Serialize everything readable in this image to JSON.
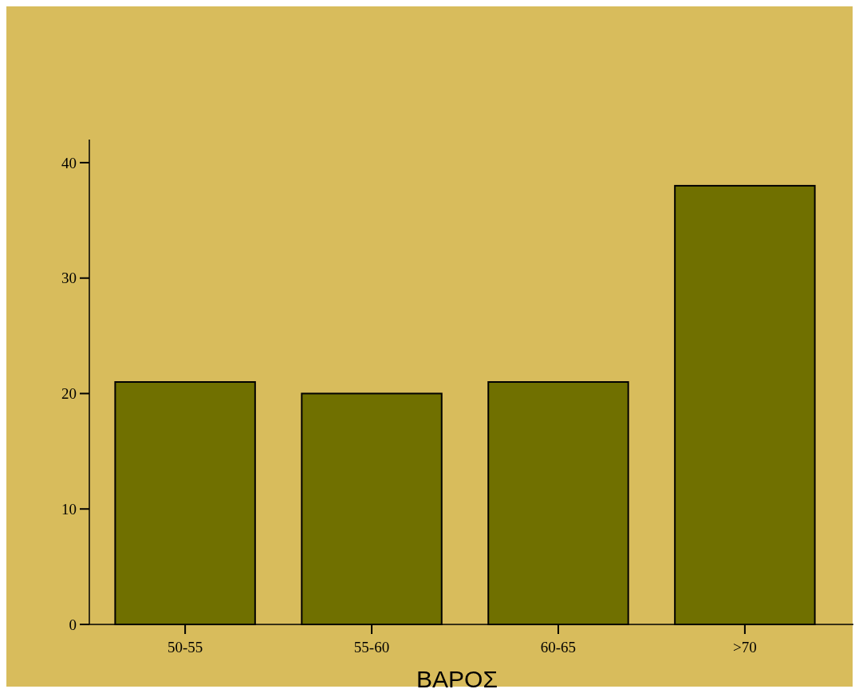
{
  "chart_data": {
    "type": "bar",
    "xlabel": "ΒΑΡΟΣ",
    "categories": [
      "50-55",
      "55-60",
      "60-65",
      ">70"
    ],
    "values": [
      21,
      20,
      21,
      38
    ],
    "color": "#707000",
    "ylim": [
      0,
      42
    ],
    "yticks": [
      0,
      10,
      20,
      30,
      40
    ]
  }
}
